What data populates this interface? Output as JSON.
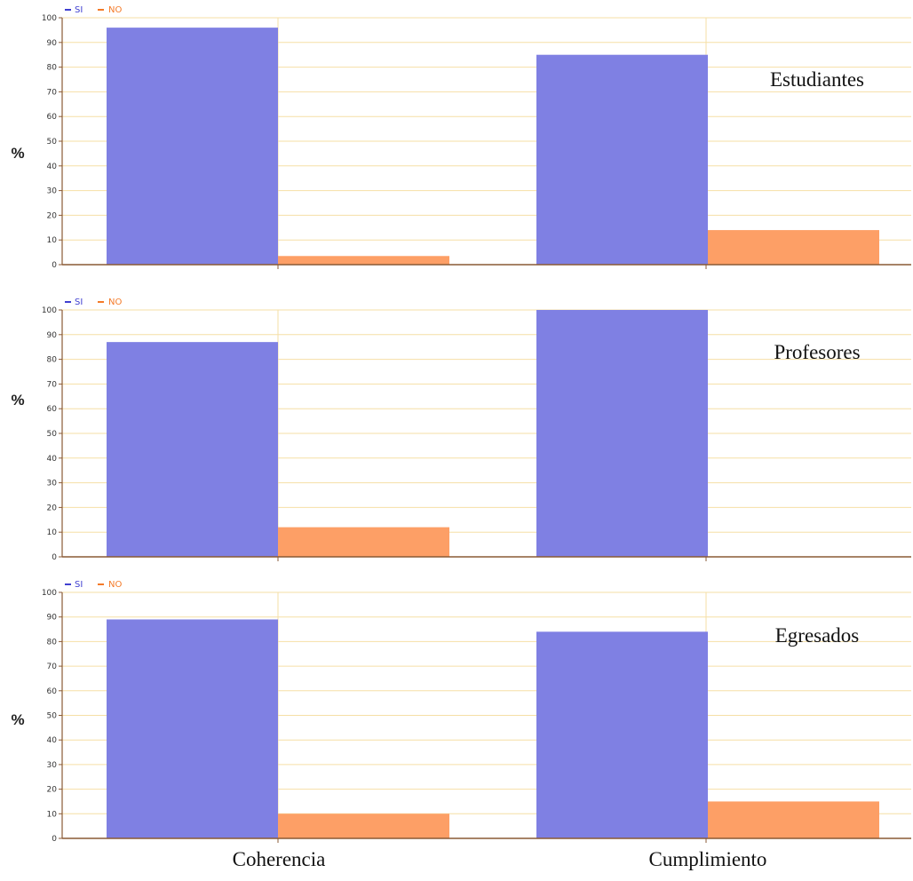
{
  "chart_data": [
    {
      "type": "bar",
      "title": "Estudiantes",
      "ylabel": "%",
      "categories": [
        "Coherencia",
        "Cumplimiento"
      ],
      "series": [
        {
          "name": "SI",
          "values": [
            96,
            85
          ]
        },
        {
          "name": "NO",
          "values": [
            3.5,
            14
          ]
        }
      ],
      "ylim": [
        0,
        100
      ],
      "yticks": [
        "0",
        "10",
        "20",
        "30",
        "40",
        "50",
        "60",
        "70",
        "80",
        "90",
        "100"
      ],
      "grid": true,
      "legend": "top-left"
    },
    {
      "type": "bar",
      "title": "Profesores",
      "ylabel": "%",
      "categories": [
        "Coherencia",
        "Cumplimiento"
      ],
      "series": [
        {
          "name": "SI",
          "values": [
            87,
            100
          ]
        },
        {
          "name": "NO",
          "values": [
            12,
            0
          ]
        }
      ],
      "ylim": [
        0,
        100
      ],
      "yticks": [
        "0",
        "10",
        "20",
        "30",
        "40",
        "50",
        "60",
        "70",
        "80",
        "90",
        "100"
      ],
      "grid": true,
      "legend": "top-left"
    },
    {
      "type": "bar",
      "title": "Egresados",
      "ylabel": "%",
      "categories": [
        "Coherencia",
        "Cumplimiento"
      ],
      "series": [
        {
          "name": "SI",
          "values": [
            89,
            84
          ]
        },
        {
          "name": "NO",
          "values": [
            10,
            15
          ]
        }
      ],
      "ylim": [
        0,
        100
      ],
      "yticks": [
        "0",
        "10",
        "20",
        "30",
        "40",
        "50",
        "60",
        "70",
        "80",
        "90",
        "100"
      ],
      "grid": true,
      "legend": "top-left"
    }
  ],
  "x_categories": [
    "Coherencia",
    "Cumplimiento"
  ],
  "colors": {
    "si": "#7f80e3",
    "si_legend": "#3f3fd0",
    "no": "#fd9f66",
    "no_legend": "#f47a28",
    "grid": "#f6dfa6",
    "axis": "#8a5a35"
  }
}
